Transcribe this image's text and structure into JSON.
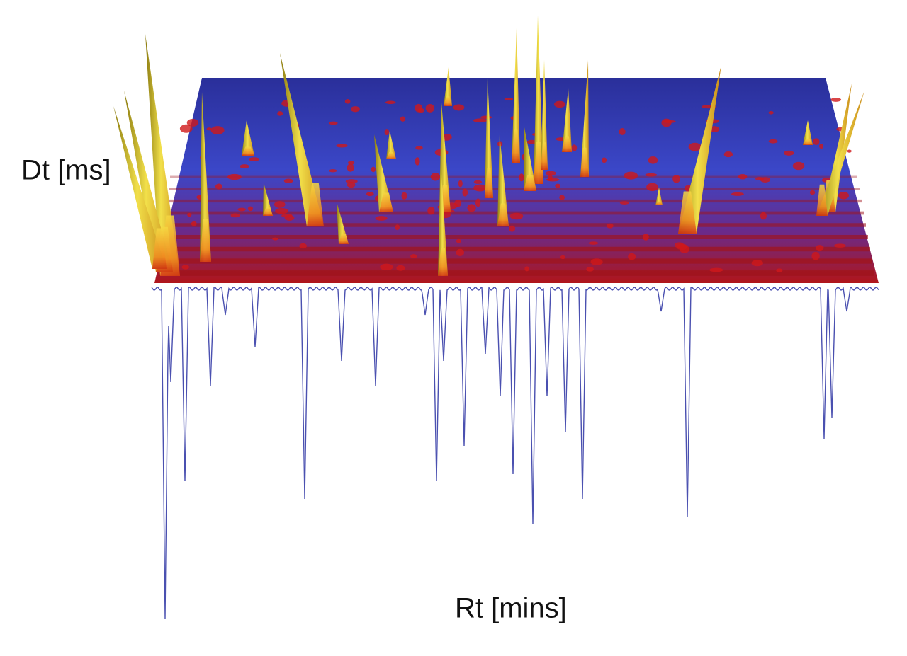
{
  "chart_data": {
    "type": "surface3d",
    "ylabel": "Dt [ms]",
    "xlabel": "Rt [mins]"
  }
}
